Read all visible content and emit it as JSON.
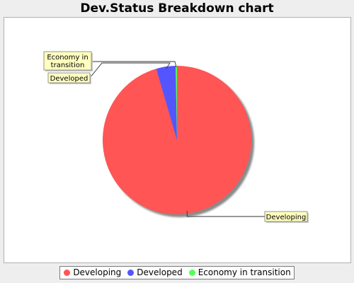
{
  "title": "Dev.Status Breakdown chart",
  "chart_data": {
    "type": "pie",
    "title": "Dev.Status Breakdown chart",
    "slices": [
      {
        "label": "Developing",
        "value": 95.5,
        "color": "#ff5555"
      },
      {
        "label": "Developed",
        "value": 4.2,
        "color": "#5555ff"
      },
      {
        "label": "Economy in transition",
        "value": 0.3,
        "color": "#55ff55"
      }
    ],
    "legend_position": "bottom",
    "background": "#ffffff"
  }
}
